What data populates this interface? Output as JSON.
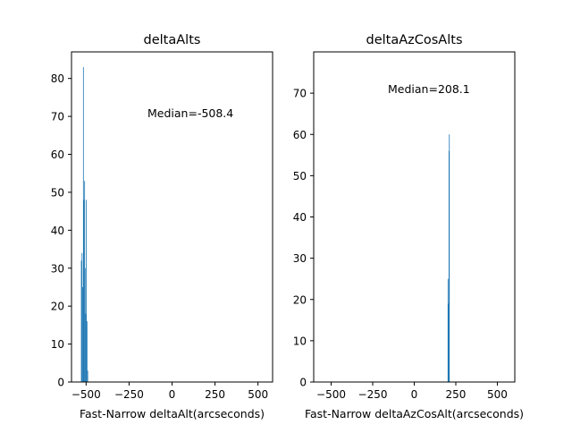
{
  "chart_data": [
    {
      "type": "bar",
      "title": "deltaAlts",
      "xlabel": "Fast-Narrow deltaAlt(arcseconds)",
      "ylabel": "",
      "xlim": [
        -585,
        585
      ],
      "ylim": [
        0,
        87
      ],
      "xticks": [
        -500,
        -250,
        0,
        250,
        500
      ],
      "yticks": [
        0,
        10,
        20,
        30,
        40,
        50,
        60,
        70,
        80
      ],
      "annotation": "Median=-508.4",
      "bar_color": "#1f77b4",
      "bin_width": 3.6,
      "bins": [
        {
          "x": -528,
          "count": 32
        },
        {
          "x": -524,
          "count": 34
        },
        {
          "x": -520,
          "count": 25
        },
        {
          "x": -516,
          "count": 83
        },
        {
          "x": -513,
          "count": 48
        },
        {
          "x": -509,
          "count": 53
        },
        {
          "x": -506,
          "count": 30
        },
        {
          "x": -502,
          "count": 18
        },
        {
          "x": -499,
          "count": 48
        },
        {
          "x": -495,
          "count": 16
        },
        {
          "x": -491,
          "count": 3
        }
      ]
    },
    {
      "type": "bar",
      "title": "deltaAzCosAlts",
      "xlabel": "Fast-Narrow deltaAzCosAlt(arcseconds)",
      "ylabel": "",
      "xlim": [
        -605,
        605
      ],
      "ylim": [
        0,
        80
      ],
      "xticks": [
        -500,
        -250,
        0,
        250,
        500
      ],
      "yticks": [
        0,
        10,
        20,
        30,
        40,
        50,
        60,
        70
      ],
      "annotation": "Median=208.1",
      "bar_color": "#1f77b4",
      "bin_width": 2.1,
      "bins": [
        {
          "x": 202,
          "count": 25
        },
        {
          "x": 204,
          "count": 19
        },
        {
          "x": 206,
          "count": 17
        },
        {
          "x": 208,
          "count": 56
        },
        {
          "x": 210,
          "count": 60
        }
      ]
    }
  ]
}
